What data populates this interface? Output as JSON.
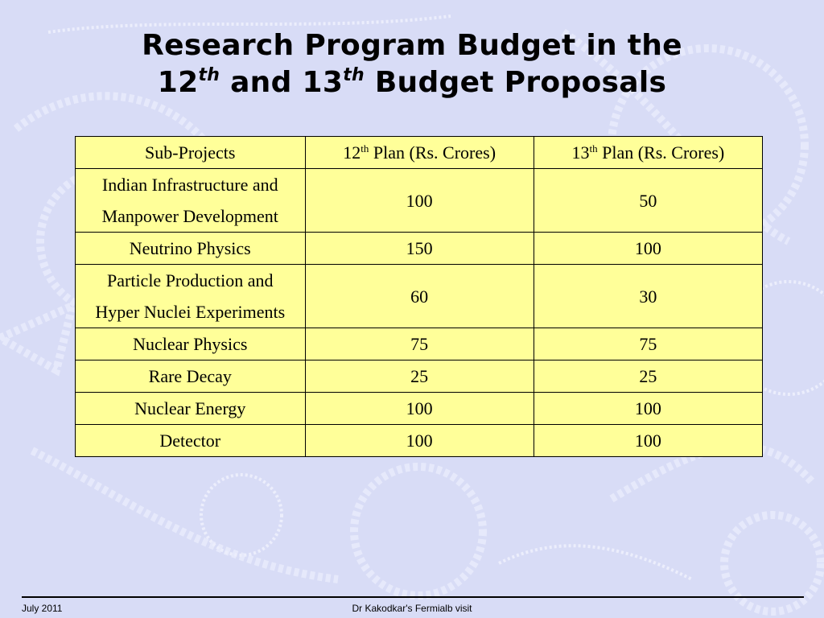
{
  "title": {
    "line1": "Research Program Budget in the",
    "line2_a": "12",
    "line2_sup_a": "th",
    "line2_b": " and 13",
    "line2_sup_b": "th",
    "line2_c": " Budget Proposals"
  },
  "table": {
    "headers": {
      "col1": "Sub-Projects",
      "col2_num": "12",
      "col2_sup": "th",
      "col2_rest": " Plan (Rs. Crores)",
      "col3_num": "13",
      "col3_sup": "th",
      "col3_rest": " Plan (Rs. Crores)"
    },
    "rows": [
      {
        "project": "Indian Infrastructure and Manpower Development",
        "plan12": "100",
        "plan13": "50"
      },
      {
        "project": "Neutrino Physics",
        "plan12": "150",
        "plan13": "100"
      },
      {
        "project": "Particle Production and Hyper Nuclei Experiments",
        "plan12": "60",
        "plan13": "30"
      },
      {
        "project": "Nuclear Physics",
        "plan12": "75",
        "plan13": "75"
      },
      {
        "project": "Rare Decay",
        "plan12": "25",
        "plan13": "25"
      },
      {
        "project": "Nuclear Energy",
        "plan12": "100",
        "plan13": "100"
      },
      {
        "project": "Detector",
        "plan12": "100",
        "plan13": "100"
      }
    ]
  },
  "footer": {
    "date": "July 2011",
    "center": "Dr Kakodkar's Fermialb visit"
  },
  "colors": {
    "background": "#d8dcf6",
    "table_fill": "#ffff99"
  }
}
